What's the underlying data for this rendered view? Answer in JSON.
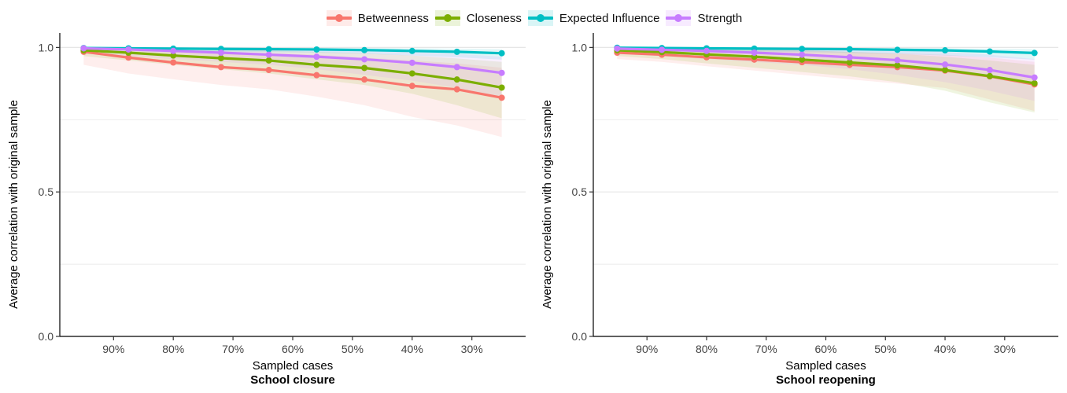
{
  "legend": [
    {
      "name": "Betweenness",
      "color": "#F8766D"
    },
    {
      "name": "Closeness",
      "color": "#7CAE00"
    },
    {
      "name": "Expected Influence",
      "color": "#00BFC4"
    },
    {
      "name": "Strength",
      "color": "#C77CFF"
    }
  ],
  "chart_data": [
    {
      "type": "line",
      "title": "School closure",
      "xlabel": "Sampled cases",
      "ylabel": "Average correlation with original sample",
      "x": [
        95,
        87.5,
        80,
        72,
        64,
        56,
        48,
        40,
        32.5,
        25
      ],
      "x_ticks": [
        "90%",
        "80%",
        "70%",
        "60%",
        "50%",
        "40%",
        "30%"
      ],
      "x_tick_values": [
        90,
        80,
        70,
        60,
        50,
        40,
        30
      ],
      "x_reversed": true,
      "xlim": [
        99,
        21
      ],
      "ylim": [
        0,
        1.05
      ],
      "y_ticks": [
        "0.0",
        "0.5",
        "1.0"
      ],
      "y_tick_values": [
        0,
        0.5,
        1.0
      ],
      "legend_position": "top",
      "grid": true,
      "series": [
        {
          "name": "Betweenness",
          "color": "#F8766D",
          "values": [
            0.985,
            0.965,
            0.948,
            0.932,
            0.922,
            0.904,
            0.889,
            0.867,
            0.855,
            0.826
          ],
          "lower": [
            0.94,
            0.91,
            0.89,
            0.87,
            0.855,
            0.83,
            0.8,
            0.76,
            0.73,
            0.69
          ],
          "upper": [
            1.0,
            0.995,
            0.99,
            0.985,
            0.98,
            0.975,
            0.965,
            0.955,
            0.945,
            0.93
          ]
        },
        {
          "name": "Closeness",
          "color": "#7CAE00",
          "values": [
            0.99,
            0.982,
            0.972,
            0.963,
            0.955,
            0.94,
            0.929,
            0.91,
            0.889,
            0.861
          ],
          "lower": [
            0.97,
            0.955,
            0.94,
            0.925,
            0.91,
            0.89,
            0.87,
            0.84,
            0.8,
            0.755
          ],
          "upper": [
            1.0,
            1.0,
            0.998,
            0.995,
            0.99,
            0.985,
            0.98,
            0.972,
            0.962,
            0.95
          ]
        },
        {
          "name": "Expected Influence",
          "color": "#00BFC4",
          "values": [
            0.998,
            0.997,
            0.996,
            0.995,
            0.994,
            0.993,
            0.991,
            0.988,
            0.985,
            0.98
          ],
          "lower": [
            0.99,
            0.99,
            0.988,
            0.986,
            0.984,
            0.982,
            0.978,
            0.972,
            0.966,
            0.958
          ],
          "upper": [
            1.0,
            1.0,
            1.0,
            1.0,
            1.0,
            0.999,
            0.998,
            0.997,
            0.996,
            0.994
          ]
        },
        {
          "name": "Strength",
          "color": "#C77CFF",
          "values": [
            0.997,
            0.993,
            0.988,
            0.982,
            0.975,
            0.968,
            0.959,
            0.947,
            0.932,
            0.912
          ],
          "lower": [
            0.98,
            0.97,
            0.96,
            0.95,
            0.94,
            0.925,
            0.905,
            0.885,
            0.86,
            0.83
          ],
          "upper": [
            1.0,
            1.0,
            1.0,
            0.999,
            0.997,
            0.994,
            0.99,
            0.985,
            0.978,
            0.968
          ]
        }
      ]
    },
    {
      "type": "line",
      "title": "School reopening",
      "xlabel": "Sampled cases",
      "ylabel": "Average correlation with original sample",
      "x": [
        95,
        87.5,
        80,
        72,
        64,
        56,
        48,
        40,
        32.5,
        25
      ],
      "x_ticks": [
        "90%",
        "80%",
        "70%",
        "60%",
        "50%",
        "40%",
        "30%"
      ],
      "x_tick_values": [
        90,
        80,
        70,
        60,
        50,
        40,
        30
      ],
      "x_reversed": true,
      "xlim": [
        99,
        21
      ],
      "ylim": [
        0,
        1.05
      ],
      "y_ticks": [
        "0.0",
        "0.5",
        "1.0"
      ],
      "y_tick_values": [
        0,
        0.5,
        1.0
      ],
      "legend_position": "top",
      "grid": true,
      "series": [
        {
          "name": "Betweenness",
          "color": "#F8766D",
          "values": [
            0.982,
            0.975,
            0.966,
            0.958,
            0.949,
            0.94,
            0.932,
            0.92,
            0.9,
            0.872
          ],
          "lower": [
            0.96,
            0.95,
            0.935,
            0.92,
            0.905,
            0.89,
            0.875,
            0.86,
            0.82,
            0.78
          ],
          "upper": [
            1.0,
            1.0,
            0.998,
            0.995,
            0.99,
            0.985,
            0.98,
            0.975,
            0.965,
            0.95
          ]
        },
        {
          "name": "Closeness",
          "color": "#7CAE00",
          "values": [
            0.99,
            0.984,
            0.976,
            0.968,
            0.958,
            0.948,
            0.938,
            0.922,
            0.901,
            0.876
          ],
          "lower": [
            0.97,
            0.96,
            0.945,
            0.93,
            0.915,
            0.9,
            0.88,
            0.85,
            0.81,
            0.775
          ],
          "upper": [
            1.0,
            1.0,
            0.998,
            0.995,
            0.99,
            0.985,
            0.978,
            0.968,
            0.955,
            0.94
          ]
        },
        {
          "name": "Expected Influence",
          "color": "#00BFC4",
          "values": [
            0.999,
            0.998,
            0.997,
            0.996,
            0.995,
            0.994,
            0.992,
            0.99,
            0.986,
            0.981
          ],
          "lower": [
            0.992,
            0.99,
            0.988,
            0.986,
            0.984,
            0.981,
            0.977,
            0.972,
            0.966,
            0.958
          ],
          "upper": [
            1.0,
            1.0,
            1.0,
            1.0,
            1.0,
            0.999,
            0.998,
            0.997,
            0.996,
            0.994
          ]
        },
        {
          "name": "Strength",
          "color": "#C77CFF",
          "values": [
            0.996,
            0.992,
            0.988,
            0.982,
            0.975,
            0.966,
            0.956,
            0.941,
            0.922,
            0.896
          ],
          "lower": [
            0.98,
            0.97,
            0.96,
            0.95,
            0.94,
            0.925,
            0.905,
            0.88,
            0.85,
            0.815
          ],
          "upper": [
            1.0,
            1.0,
            1.0,
            0.999,
            0.997,
            0.994,
            0.99,
            0.985,
            0.975,
            0.96
          ]
        }
      ]
    }
  ]
}
